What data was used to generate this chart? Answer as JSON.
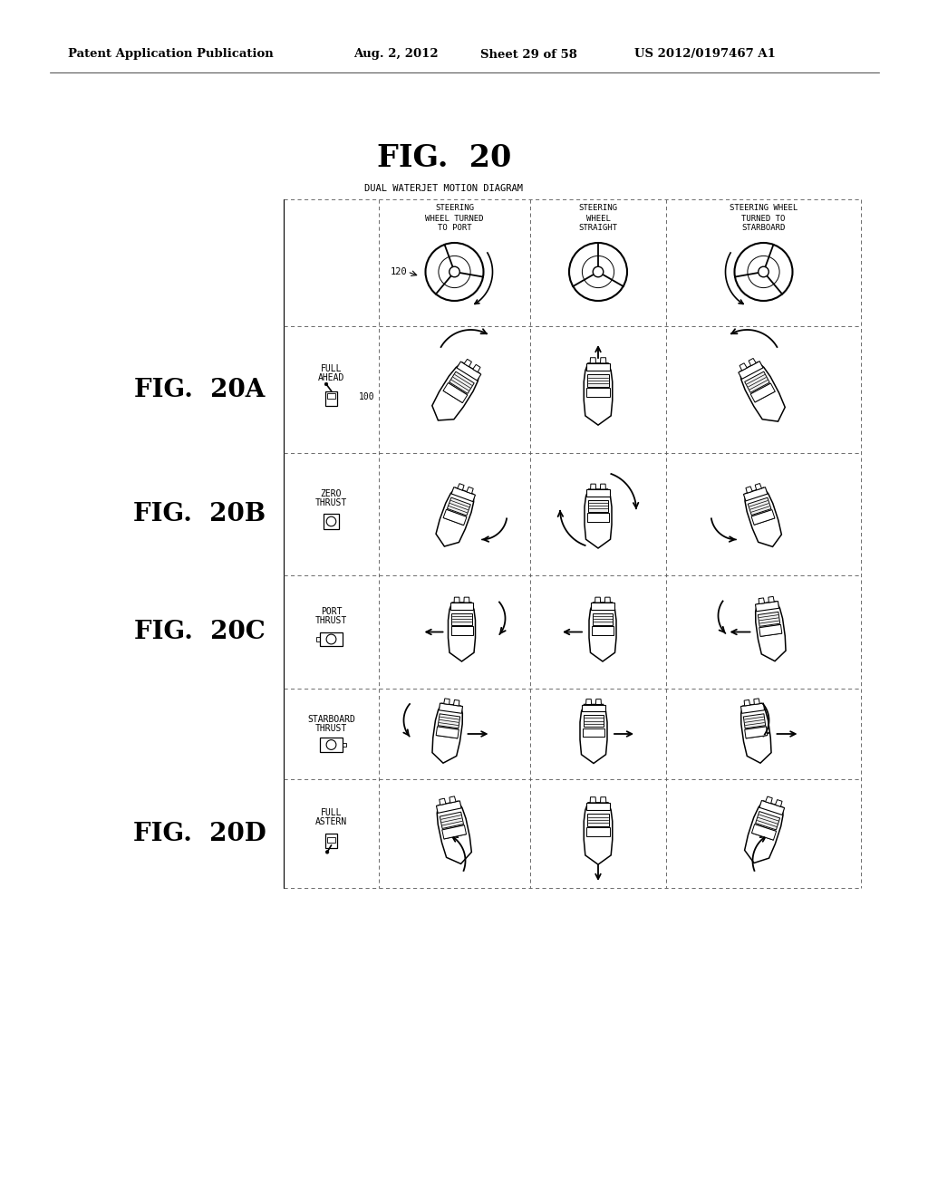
{
  "title": "FIG.  20",
  "subtitle": "DUAL WATERJET MOTION DIAGRAM",
  "header_left": "Patent Application Publication",
  "header_mid": "Aug. 2, 2012   Sheet 29 of 58",
  "header_right": "US 2012/0197467 A1",
  "col_headers": [
    [
      "STEERING",
      "WHEEL TURNED",
      "TO PORT"
    ],
    [
      "STEERING",
      "WHEEL",
      "STRAIGHT"
    ],
    [
      "STEERING WHEEL",
      "TURNED TO",
      "STARBOARD"
    ]
  ],
  "row_fig_labels": [
    "FIG.  20A",
    "FIG.  20B",
    "FIG.  20C",
    "FIG.  20D"
  ],
  "row_sub_labels": [
    [
      "FULL",
      "AHEAD"
    ],
    [
      "ZERO",
      "THRUST"
    ],
    [
      "PORT",
      "THRUST"
    ],
    [
      "STARBOARD",
      "THRUST"
    ],
    [
      "FULL",
      "ASTERN"
    ]
  ],
  "label_120": "120",
  "label_100": "100",
  "bg_color": "#ffffff"
}
